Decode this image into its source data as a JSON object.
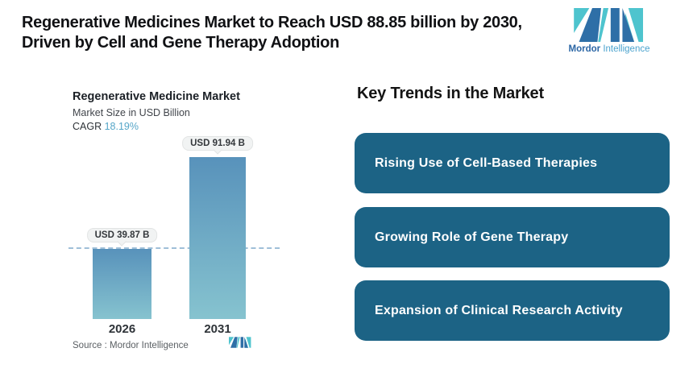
{
  "header": {
    "title": [
      "Regenerative Medicines Market to Reach USD 88.85 billion by 2030,",
      "Driven by Cell and Gene Therapy Adoption"
    ]
  },
  "brand": {
    "name_bold": "Mordor",
    "name_light": "Intelligence",
    "teal": "#4EC4CE",
    "blue": "#2E6FA7"
  },
  "chart": {
    "title": "Regenerative Medicine Market",
    "subtitle": "Market Size in USD Billion",
    "cagr_label": "CAGR ",
    "cagr_value": "18.19%",
    "cagr_value_color": "#56A6C8",
    "source": "Source :  Mordor Intelligence"
  },
  "chart_data": {
    "type": "bar",
    "title": "Regenerative Medicine Market",
    "subtitle": "Market Size in USD Billion",
    "unit": "USD Billion",
    "cagr_percent": 18.19,
    "categories": [
      "2026",
      "2031"
    ],
    "values": [
      39.87,
      91.94
    ],
    "value_labels": [
      "USD 39.87 B",
      "USD 91.94 B"
    ],
    "ylim": [
      0,
      91.94
    ],
    "reference_line_value": 39.87,
    "bar_color_top": "#5892BB",
    "bar_color_bottom": "#86C3CF",
    "dash_color": "#9FBFD8",
    "legend": "none",
    "grid": "off"
  },
  "trends": {
    "heading": "Key Trends in the Market",
    "box_color": "#1C6385",
    "items": [
      "Rising Use of Cell-Based Therapies",
      "Growing Role of Gene Therapy",
      "Expansion of Clinical Research Activity"
    ]
  }
}
